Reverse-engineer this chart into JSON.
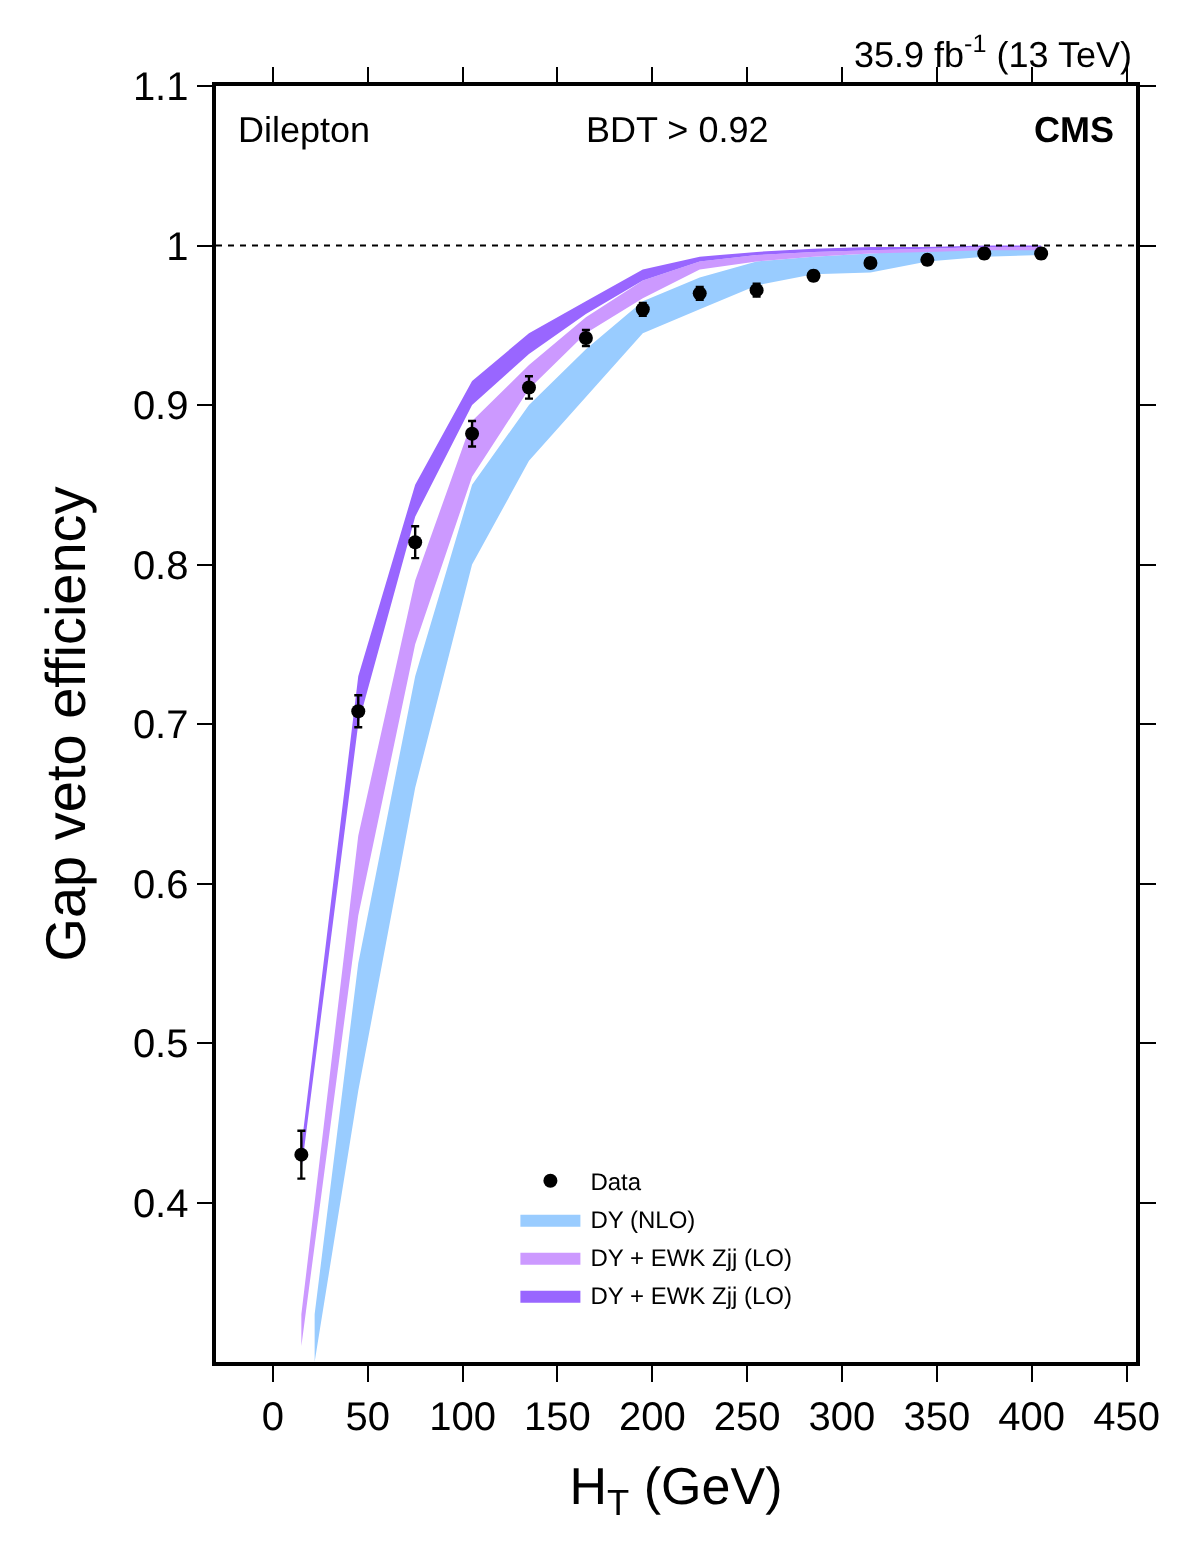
{
  "chart_data": {
    "type": "area",
    "xlabel": "H$_{T}$ (GeV)",
    "ylabel": "Gap veto efficiency",
    "annotations": [
      "35.9 fb$^{-1}$ (13 TeV)",
      "Dilepton",
      "BDT > 0.92",
      "CMS"
    ],
    "xlim": [
      -30,
      455
    ],
    "xticks": [
      0,
      50,
      100,
      150,
      200,
      250,
      300,
      350,
      400,
      450
    ],
    "ylim": [
      0.3,
      1.1
    ],
    "yticks": [
      0.4,
      0.5,
      0.6,
      0.7,
      0.8,
      0.9,
      1,
      1.1
    ],
    "legend": "bottom right",
    "ref_lines": [
      {
        "axis": "y",
        "value": 1,
        "line_style": "dotted",
        "color": "#000000"
      }
    ],
    "series": [
      {
        "name": "DY (NLO)",
        "color": "#99ccff",
        "x": [
          22,
          45,
          75,
          105,
          135,
          165,
          195,
          225,
          255,
          285,
          315,
          345,
          375,
          405
        ],
        "values": [
          null,
          null,
          null,
          null,
          null,
          null,
          null,
          null,
          null,
          null,
          null,
          null,
          null,
          null
        ],
        "lower": [
          0.3,
          0.47,
          0.66,
          0.8,
          0.865,
          0.905,
          0.945,
          0.96,
          0.975,
          0.982,
          0.983,
          0.99,
          0.993,
          0.994
        ],
        "upper": [
          0.33,
          0.55,
          0.73,
          0.85,
          0.9,
          0.935,
          0.965,
          0.98,
          0.99,
          0.993,
          0.995,
          0.997,
          0.998,
          0.998
        ]
      },
      {
        "name": "DY + EWK Zjj (LO)",
        "color": "#cc99ff",
        "x": [
          15,
          45,
          75,
          105,
          135,
          165,
          195,
          225,
          255,
          285,
          315,
          345,
          375,
          405
        ],
        "values": [
          null,
          null,
          null,
          null,
          null,
          null,
          null,
          null,
          null,
          null,
          null,
          null,
          null,
          null
        ],
        "lower": [
          0.31,
          0.58,
          0.75,
          0.855,
          0.91,
          0.945,
          0.967,
          0.985,
          0.99,
          0.993,
          0.995,
          0.996,
          0.997,
          0.997
        ],
        "upper": [
          0.33,
          0.63,
          0.79,
          0.89,
          0.925,
          0.955,
          0.978,
          0.99,
          0.994,
          0.996,
          0.997,
          0.998,
          0.999,
          0.999
        ]
      },
      {
        "name": "DY + EWK Zjj (LO)",
        "color": "#9966ff",
        "x": [
          15,
          45,
          75,
          105,
          135,
          165,
          195,
          225,
          255,
          285,
          315,
          345,
          375,
          405
        ],
        "values": [
          null,
          null,
          null,
          null,
          null,
          null,
          null,
          null,
          null,
          null,
          null,
          null,
          null,
          null
        ],
        "lower": [
          0.42,
          0.7,
          0.83,
          0.9,
          0.932,
          0.957,
          0.978,
          0.99,
          0.994,
          0.996,
          0.997,
          0.998,
          0.999,
          0.999
        ],
        "upper": [
          0.435,
          0.73,
          0.85,
          0.915,
          0.945,
          0.965,
          0.985,
          0.993,
          0.996,
          0.998,
          0.999,
          0.999,
          1.0,
          1.0
        ]
      },
      {
        "name": "Data",
        "type": "scatter",
        "color": "#000000",
        "marker": "circle",
        "x": [
          15,
          45,
          75,
          105,
          135,
          165,
          195,
          225,
          255,
          285,
          315,
          345,
          375,
          405
        ],
        "values": [
          0.43,
          0.708,
          0.814,
          0.882,
          0.911,
          0.942,
          0.96,
          0.97,
          0.972,
          0.981,
          0.989,
          0.991,
          0.995,
          0.995
        ],
        "errors": [
          0.015,
          0.01,
          0.01,
          0.008,
          0.007,
          0.005,
          0.004,
          0.004,
          0.004,
          0.003,
          0.003,
          0.003,
          0.003,
          0.003
        ]
      }
    ]
  }
}
